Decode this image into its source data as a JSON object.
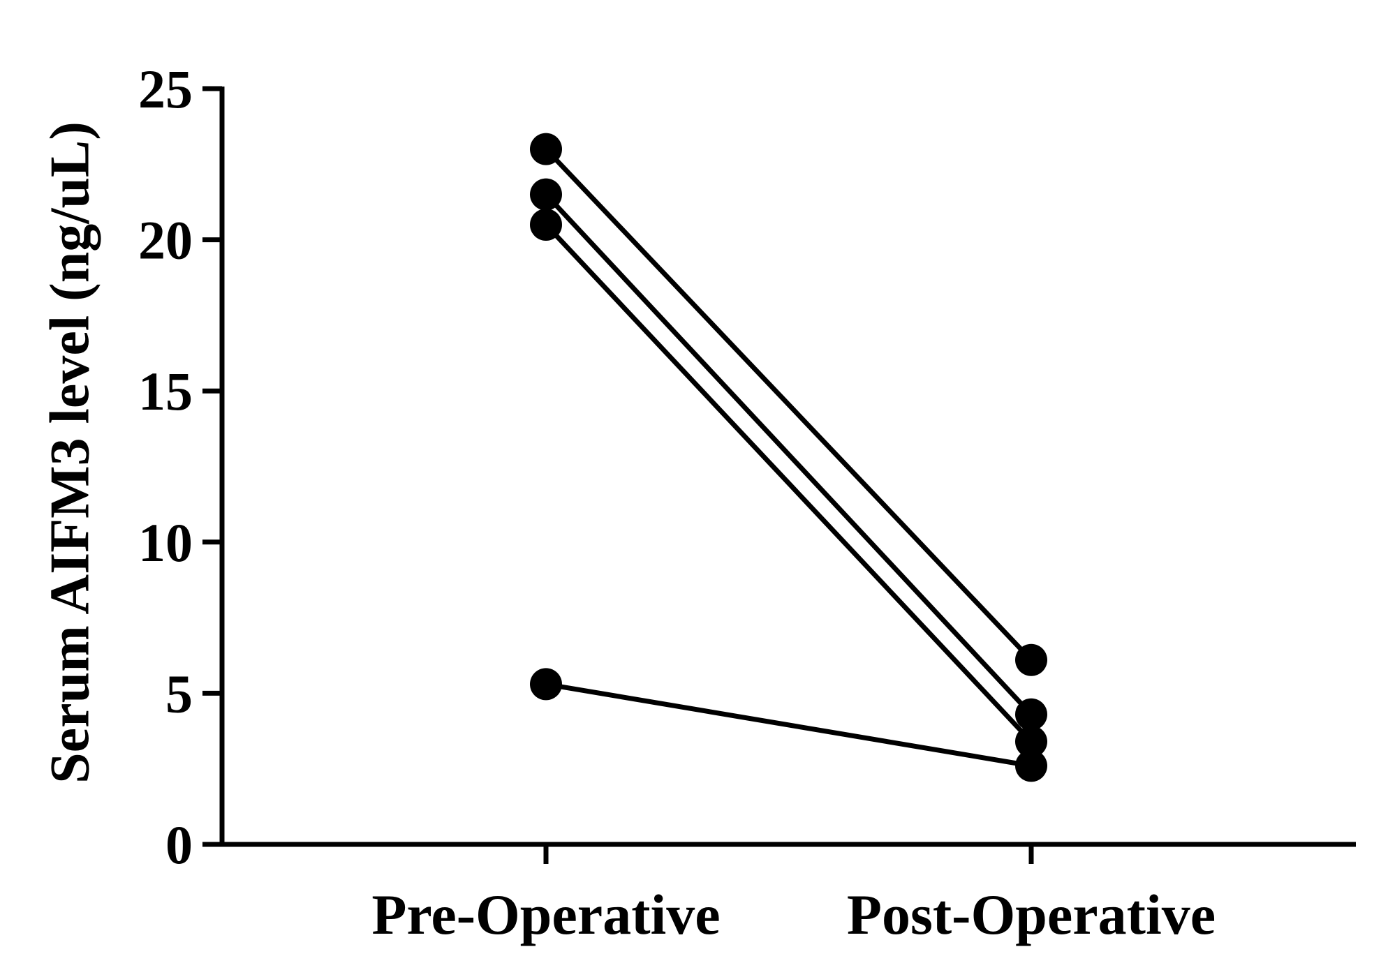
{
  "chart_data": {
    "type": "line",
    "title": "",
    "xlabel": "",
    "ylabel": "Serum AIFM3 level (ng/uL)",
    "categories": [
      "Pre-Operative",
      "Post-Operative"
    ],
    "ylim": [
      0,
      25
    ],
    "yticks": [
      0,
      5,
      10,
      15,
      20,
      25
    ],
    "grid": false,
    "legend": "none",
    "colors": {
      "line": "#000000",
      "marker": "#000000"
    },
    "series": [
      {
        "values": [
          23.0,
          6.1
        ]
      },
      {
        "values": [
          21.5,
          4.3
        ]
      },
      {
        "values": [
          20.5,
          3.4
        ]
      },
      {
        "values": [
          5.3,
          2.6
        ]
      }
    ]
  }
}
